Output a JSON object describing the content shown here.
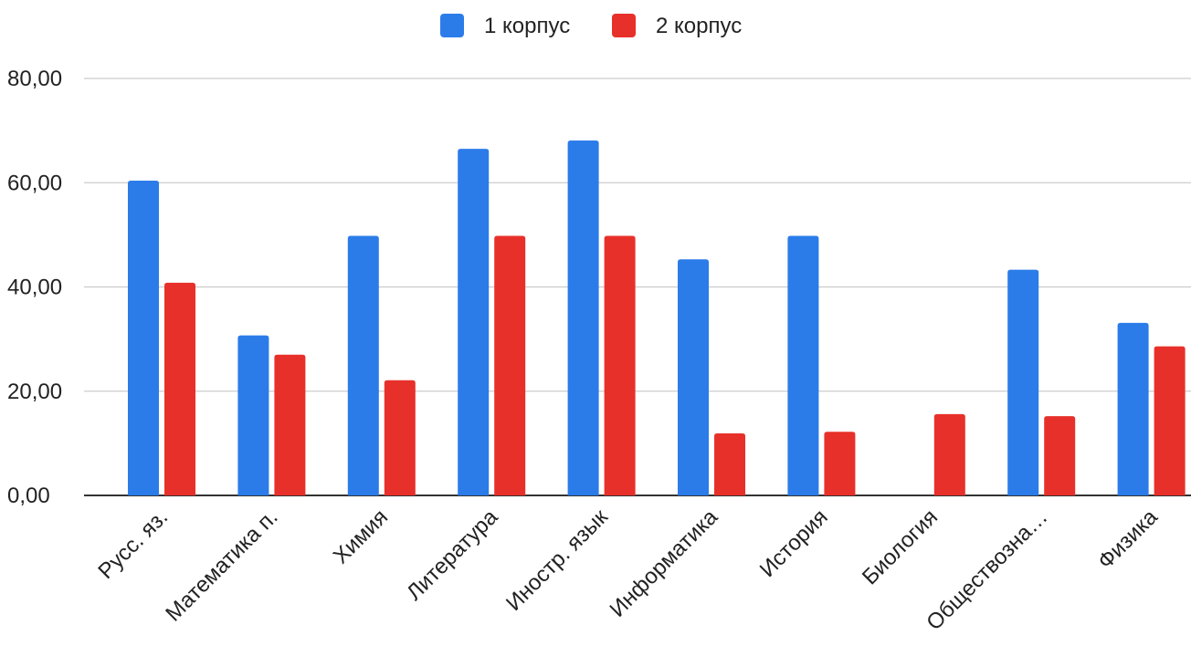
{
  "chart_data": {
    "type": "bar",
    "categories": [
      "Русс. яз.",
      "Математика п.",
      "Химия",
      "Литература",
      "Иностр. язык",
      "Информатика",
      "История",
      "Биология",
      "Обществозна…",
      "Физика"
    ],
    "series": [
      {
        "name": "1 корпус",
        "color": "#2b7ce9",
        "values": [
          60.4,
          30.7,
          49.8,
          66.5,
          68.1,
          45.3,
          49.8,
          0,
          43.3,
          33.1
        ]
      },
      {
        "name": "2 корпус",
        "color": "#e8302a",
        "values": [
          40.8,
          27.0,
          22.1,
          49.8,
          49.8,
          11.9,
          12.2,
          15.6,
          15.2,
          28.6
        ]
      }
    ],
    "yticks": [
      "0,00",
      "20,00",
      "40,00",
      "60,00",
      "80,00"
    ],
    "ylim": [
      0,
      80
    ],
    "grid": true,
    "legend_position": "top-center",
    "xlabel": "",
    "ylabel": "",
    "title": ""
  }
}
